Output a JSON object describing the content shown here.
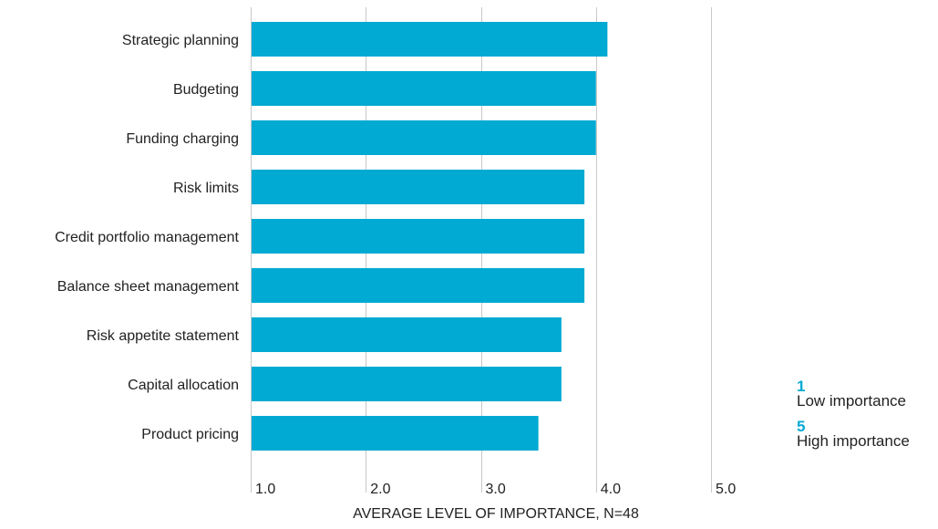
{
  "chart_data": {
    "type": "bar",
    "orientation": "horizontal",
    "categories": [
      "Strategic planning",
      "Budgeting",
      "Funding charging",
      "Risk limits",
      "Credit portfolio management",
      "Balance sheet management",
      "Risk appetite statement",
      "Capital allocation",
      "Product pricing"
    ],
    "values": [
      4.1,
      4.0,
      4.0,
      3.9,
      3.9,
      3.9,
      3.7,
      3.7,
      3.5
    ],
    "xlim": [
      1.0,
      5.0
    ],
    "x_ticks": [
      "1.0",
      "2.0",
      "3.0",
      "4.0",
      "5.0"
    ],
    "xlabel": "AVERAGE LEVEL OF IMPORTANCE, N=48",
    "ylabel": "",
    "title": "",
    "grid": true,
    "bar_color": "#00aad2",
    "grid_color": "#c8c8c8",
    "legend": {
      "placement": "right",
      "accent_color": "#00aad2",
      "items": [
        {
          "value": "1",
          "label": "Low importance"
        },
        {
          "value": "5",
          "label": "High importance"
        }
      ]
    }
  }
}
